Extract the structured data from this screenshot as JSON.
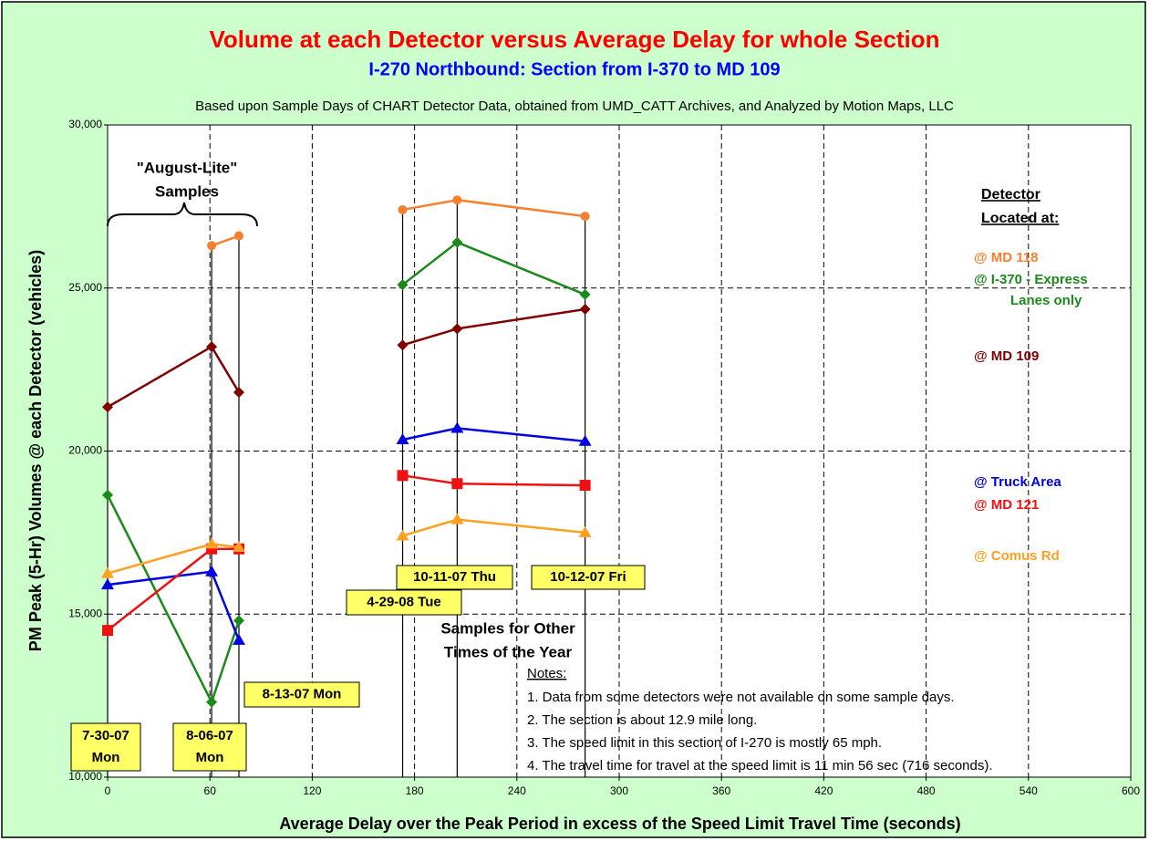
{
  "chart_data": {
    "type": "line",
    "title": "Volume at each Detector versus Average Delay for whole Section",
    "subtitle": "I-270 Northbound: Section from I-370 to MD 109",
    "note": "Based upon Sample Days of CHART Detector Data, obtained from UMD_CATT Archives, and Analyzed by Motion Maps, LLC",
    "x_label": "Average Delay over the Peak Period in excess of the Speed Limit Travel Time (seconds)",
    "y_label": "PM Peak (5-Hr) Volumes @ each Detector (vehicles)",
    "x": [
      0,
      61,
      77,
      null,
      173,
      205,
      280
    ],
    "series": [
      {
        "name": "@ MD 118",
        "color": "#f7802f",
        "marker": "circle",
        "values": [
          null,
          26300,
          26600,
          null,
          27400,
          27700,
          27200
        ]
      },
      {
        "name": "@ I-370 - Express Lanes only",
        "color": "#1a8a1a",
        "marker": "diamond",
        "values": [
          18650,
          12300,
          14800,
          null,
          25100,
          26400,
          24800
        ]
      },
      {
        "name": "@ MD 109",
        "color": "#800000",
        "marker": "diamond",
        "values": [
          21350,
          23200,
          21800,
          null,
          23250,
          23750,
          24350
        ]
      },
      {
        "name": "@ Truck Area",
        "color": "#0000e0",
        "marker": "triangle",
        "values": [
          15900,
          16300,
          14200,
          null,
          20350,
          20700,
          20300
        ]
      },
      {
        "name": "@ MD 121",
        "color": "#ee1111",
        "marker": "square",
        "values": [
          14500,
          17000,
          17000,
          null,
          19250,
          19000,
          18950
        ]
      },
      {
        "name": "@ Comus Rd",
        "color": "#ffa020",
        "marker": "triangle",
        "values": [
          16250,
          17150,
          17050,
          null,
          17400,
          17900,
          17500
        ]
      }
    ],
    "legend_title": [
      "Detector",
      "Located at:"
    ],
    "xlim": [
      0,
      600
    ],
    "xticks": [
      0,
      60,
      120,
      180,
      240,
      300,
      360,
      420,
      480,
      540,
      600
    ],
    "ylim": [
      10000,
      30000
    ],
    "yticks": [
      {
        "value": 10000,
        "label": "10,000"
      },
      {
        "value": 15000,
        "label": "15,000"
      },
      {
        "value": 20000,
        "label": "20,000"
      },
      {
        "value": 25000,
        "label": "25,000"
      },
      {
        "value": 30000,
        "label": "30,000"
      }
    ],
    "grid": true,
    "date_labels": [
      [
        "7-30-07",
        "Mon"
      ],
      [
        "8-06-07",
        "Mon"
      ],
      [
        "8-13-07 Mon"
      ],
      [
        "4-29-08 Tue"
      ],
      [
        "10-11-07 Thu"
      ],
      [
        "10-12-07 Fri"
      ]
    ],
    "group_labels": [
      [
        "\"August-Lite\"",
        "Samples"
      ],
      [
        "Samples for Other",
        "Times of the Year"
      ]
    ],
    "notes_title": "Notes:",
    "notes": [
      "1. Data from some detectors were not available on some sample days.",
      "2. The section is about 12.9 mile long.",
      "3. The speed limit in this section of I-270 is mostly 65 mph.",
      "4. The travel time for travel at the speed limit is 11 min 56 sec (716 seconds)."
    ]
  }
}
